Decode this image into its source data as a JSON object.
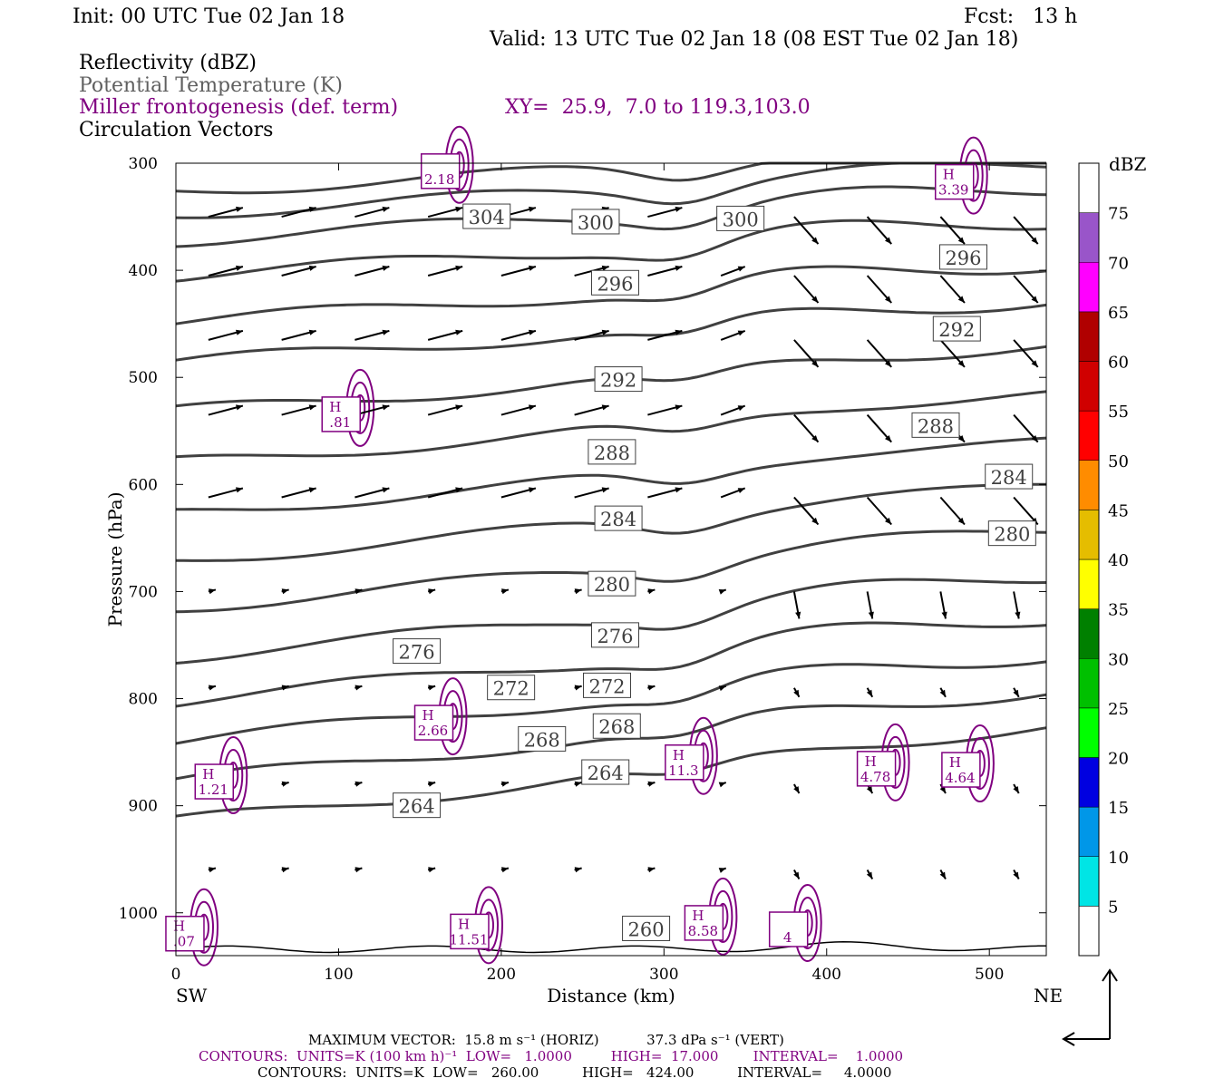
{
  "header": {
    "init": "Init: 00 UTC Tue 02 Jan 18",
    "fcst": "Fcst:   13 h",
    "valid": "Valid: 13 UTC Tue 02 Jan 18 (08 EST Tue 02 Jan 18)",
    "field_reflectivity": "Reflectivity (dBZ)",
    "field_theta": "Potential Temperature (K)",
    "field_fronto": "Miller frontogenesis (def. term)",
    "xy": "XY=  25.9,  7.0 to 119.3,103.0",
    "field_vectors": "Circulation Vectors"
  },
  "colors": {
    "theta": "#404040",
    "fronto": "#800080",
    "vectors": "#000000"
  },
  "chart_data": {
    "type": "cross-section",
    "xlabel": "Distance (km)",
    "ylabel": "Pressure (hPa)",
    "xlim": [
      0,
      535
    ],
    "ylim": [
      1040,
      300
    ],
    "x_ticks": [
      "0",
      "100",
      "200",
      "300",
      "400",
      "500"
    ],
    "y_ticks": [
      "300",
      "400",
      "500",
      "600",
      "700",
      "800",
      "900",
      "1000"
    ],
    "left_end_label": "SW",
    "right_end_label": "NE",
    "colorbar": {
      "unit": "dBZ",
      "levels": [
        "5",
        "10",
        "15",
        "20",
        "25",
        "30",
        "35",
        "40",
        "45",
        "50",
        "55",
        "60",
        "65",
        "70",
        "75"
      ],
      "colors": [
        "#ffffff",
        "#00e5e5",
        "#0097e8",
        "#0000e0",
        "#00ff00",
        "#00c000",
        "#008000",
        "#ffff00",
        "#e5bd00",
        "#ff8c00",
        "#ff0000",
        "#d00000",
        "#b00000",
        "#ff00ff",
        "#9955c9",
        "#ffffff"
      ]
    },
    "theta_labels": [
      {
        "text": "304",
        "x": 191,
        "p": 350
      },
      {
        "text": "300",
        "x": 258,
        "p": 355
      },
      {
        "text": "300",
        "x": 347,
        "p": 352
      },
      {
        "text": "296",
        "x": 270,
        "p": 412
      },
      {
        "text": "296",
        "x": 484,
        "p": 388
      },
      {
        "text": "292",
        "x": 272,
        "p": 502
      },
      {
        "text": "292",
        "x": 480,
        "p": 455
      },
      {
        "text": "288",
        "x": 268,
        "p": 570
      },
      {
        "text": "288",
        "x": 467,
        "p": 545
      },
      {
        "text": "284",
        "x": 272,
        "p": 632
      },
      {
        "text": "284",
        "x": 512,
        "p": 593
      },
      {
        "text": "280",
        "x": 268,
        "p": 693
      },
      {
        "text": "280",
        "x": 514,
        "p": 646
      },
      {
        "text": "276",
        "x": 148,
        "p": 756
      },
      {
        "text": "276",
        "x": 270,
        "p": 741
      },
      {
        "text": "272",
        "x": 206,
        "p": 790
      },
      {
        "text": "272",
        "x": 265,
        "p": 788
      },
      {
        "text": "268",
        "x": 225,
        "p": 838
      },
      {
        "text": "268",
        "x": 271,
        "p": 826
      },
      {
        "text": "264",
        "x": 148,
        "p": 900
      },
      {
        "text": "264",
        "x": 264,
        "p": 869
      },
      {
        "text": "260",
        "x": 289,
        "p": 1015
      }
    ],
    "fronto_maxima": [
      {
        "h": "",
        "v": "2.18",
        "x": 162,
        "p": 310
      },
      {
        "h": "H",
        "v": "3.39",
        "x": 478,
        "p": 320
      },
      {
        "h": "H",
        "v": ".81",
        "x": 101,
        "p": 537
      },
      {
        "h": "H",
        "v": "2.66",
        "x": 158,
        "p": 825
      },
      {
        "h": "H",
        "v": "11.3",
        "x": 312,
        "p": 862
      },
      {
        "h": "H",
        "v": "1.21",
        "x": 23,
        "p": 880
      },
      {
        "h": "H",
        "v": "4.78",
        "x": 430,
        "p": 868
      },
      {
        "h": "H",
        "v": "4.64",
        "x": 482,
        "p": 869
      },
      {
        "h": "H",
        "v": ".07",
        "x": 5,
        "p": 1022
      },
      {
        "h": "H",
        "v": "11.51",
        "x": 180,
        "p": 1020
      },
      {
        "h": "H",
        "v": "8.58",
        "x": 324,
        "p": 1012
      },
      {
        "h": "",
        "v": "4",
        "x": 376,
        "p": 1018
      }
    ]
  },
  "footer": {
    "max_vector": "MAXIMUM VECTOR:  15.8 m s⁻¹ (HORIZ)           37.3 dPa s⁻¹ (VERT)",
    "contours_fronto": "CONTOURS:  UNITS=K (100 km h)⁻¹  LOW=   1.0000         HIGH=  17.000        INTERVAL=    1.0000",
    "contours_theta": "CONTOURS:  UNITS=K  LOW=   260.00          HIGH=   424.00          INTERVAL=     4.0000"
  }
}
